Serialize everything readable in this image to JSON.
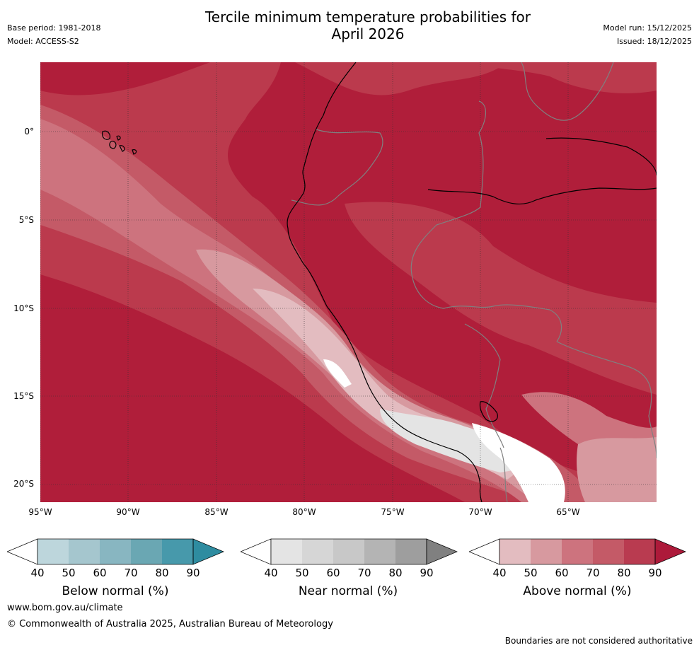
{
  "title": {
    "line1": "Tercile minimum temperature probabilities for",
    "line2": "April 2026"
  },
  "header_left": {
    "base_period": "Base period: 1981-2018",
    "model": "Model: ACCESS-S2"
  },
  "header_right": {
    "model_run": "Model run: 15/12/2025",
    "issued": "Issued: 18/12/2025"
  },
  "map": {
    "lat_labels": [
      "0°",
      "5°S",
      "10°S",
      "15°S",
      "20°S"
    ],
    "lon_labels": [
      "95°W",
      "90°W",
      "85°W",
      "80°W",
      "75°W",
      "70°W",
      "65°W"
    ],
    "colors": {
      "above_90": "#b01e3a",
      "above_80": "#bb3a4d",
      "above_70": "#c45a67",
      "above_60": "#cd737e",
      "above_50": "#d7999f",
      "above_40": "#e3bcc0",
      "near_40": "#e4e4e4",
      "near_50": "#d6d6d6",
      "below_40": "#bfd6dc",
      "land_border": "#808080",
      "coastline": "#000000"
    }
  },
  "colorbars": [
    {
      "title": "Below normal (%)",
      "ticks": [
        "40",
        "50",
        "60",
        "70",
        "80",
        "90"
      ],
      "colors": [
        "#bdd6dc",
        "#a5c6ce",
        "#88b6c1",
        "#6aa7b3",
        "#4799ab",
        "#2e8ca0"
      ]
    },
    {
      "title": "Near normal (%)",
      "ticks": [
        "40",
        "50",
        "60",
        "70",
        "80",
        "90"
      ],
      "colors": [
        "#e4e4e4",
        "#d6d6d6",
        "#c8c8c8",
        "#b4b4b4",
        "#9e9e9e",
        "#808080"
      ]
    },
    {
      "title": "Above normal (%)",
      "ticks": [
        "40",
        "50",
        "60",
        "70",
        "80",
        "90"
      ],
      "colors": [
        "#e3bcc0",
        "#d7999f",
        "#cd737e",
        "#c45a67",
        "#b93b50",
        "#ad1a3a"
      ]
    }
  ],
  "footer": {
    "website": "www.bom.gov.au/climate",
    "copyright": "© Commonwealth of Australia 2025, Australian Bureau of Meteorology",
    "disclaimer": "Boundaries are not considered authoritative"
  }
}
